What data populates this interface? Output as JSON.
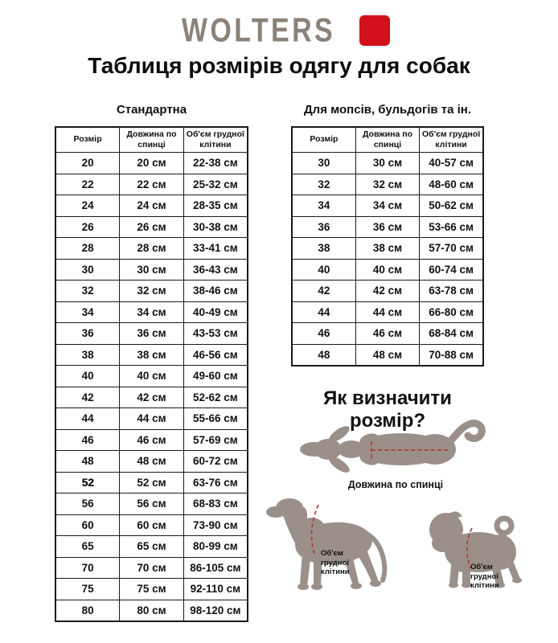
{
  "logo": {
    "text": "WOLTERS",
    "text_color": "#8b8177",
    "square_color": "#d2101b"
  },
  "page_title": "Таблиця розмірів одягу для собак",
  "tables": [
    {
      "title": "Стандартна",
      "columns": [
        "Розмір",
        "Довжина по спинці",
        "Об'єм грудної клітини"
      ],
      "rows": [
        [
          "20",
          "20 см",
          "22-38 см"
        ],
        [
          "22",
          "22 см",
          "25-32 см"
        ],
        [
          "24",
          "24 см",
          "28-35 см"
        ],
        [
          "26",
          "26 см",
          "30-38 см"
        ],
        [
          "28",
          "28 см",
          "33-41 см"
        ],
        [
          "30",
          "30 см",
          "36-43 см"
        ],
        [
          "32",
          "32 см",
          "38-46 см"
        ],
        [
          "34",
          "34 см",
          "40-49 см"
        ],
        [
          "36",
          "36 см",
          "43-53 см"
        ],
        [
          "38",
          "38 см",
          "46-56 см"
        ],
        [
          "40",
          "40 см",
          "49-60 см"
        ],
        [
          "42",
          "42 см",
          "52-62 см"
        ],
        [
          "44",
          "44 см",
          "55-66 см"
        ],
        [
          "46",
          "46 см",
          "57-69 см"
        ],
        [
          "48",
          "48 см",
          "60-72 см"
        ],
        [
          "52",
          "52 см",
          "63-76 см"
        ],
        [
          "56",
          "56 см",
          "68-83 см"
        ],
        [
          "60",
          "60 см",
          "73-90 см"
        ],
        [
          "65",
          "65 см",
          "80-99 см"
        ],
        [
          "70",
          "70 см",
          "86-105 см"
        ],
        [
          "75",
          "75 см",
          "92-110 см"
        ],
        [
          "80",
          "80 см",
          "98-120 см"
        ]
      ],
      "bold_size_rows": [
        15
      ]
    },
    {
      "title": "Для мопсів, бульдогів та ін.",
      "columns": [
        "Розмір",
        "Довжина по спинці",
        "Об'єм грудної клітини"
      ],
      "rows": [
        [
          "30",
          "30 см",
          "40-57 см"
        ],
        [
          "32",
          "32 см",
          "48-60 см"
        ],
        [
          "34",
          "34 см",
          "50-62 см"
        ],
        [
          "36",
          "36 см",
          "53-66 см"
        ],
        [
          "38",
          "38 см",
          "57-70 см"
        ],
        [
          "40",
          "40 см",
          "60-74 см"
        ],
        [
          "42",
          "42 см",
          "63-78 см"
        ],
        [
          "44",
          "44 см",
          "66-80 см"
        ],
        [
          "46",
          "46 см",
          "68-84 см"
        ],
        [
          "48",
          "48 см",
          "70-88 см"
        ]
      ],
      "bold_size_rows": []
    }
  ],
  "how_to": {
    "title": "Як визначити розмір?",
    "back_length_label": "Довжина по спинці",
    "chest_label": "Об'єм грудної клітини",
    "silhouette_color": "#9a9089",
    "measure_line_color": "#b23b34"
  }
}
